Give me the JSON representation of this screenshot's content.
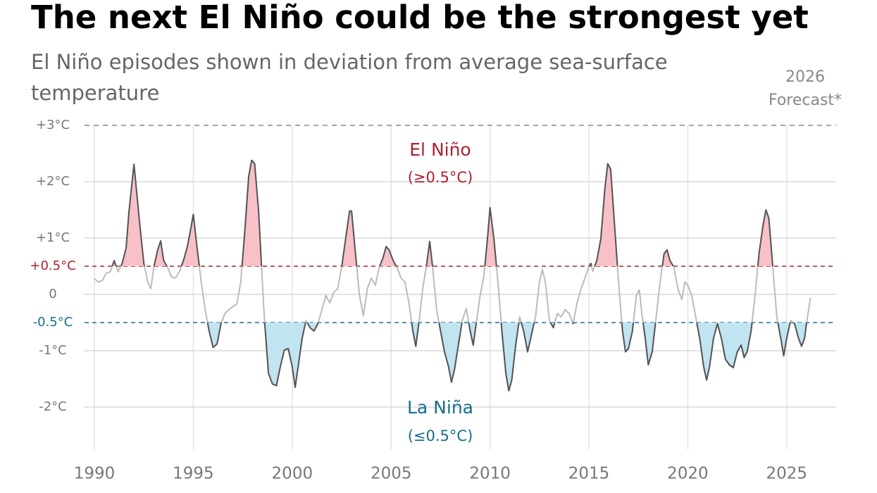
{
  "chart_data": {
    "type": "line",
    "title": "The next El Niño could be the strongest yet",
    "subtitle": "El Niño episodes shown in deviation from average sea-surface temperature",
    "annotations": {
      "el_nino": "El Niño",
      "el_nino_rule": "(≥0.5°C)",
      "la_nina": "La Niña",
      "la_nina_rule": "(≤0.5°C)",
      "forecast_year": "2026",
      "forecast": "Forecast*"
    },
    "el_nino_threshold": 0.5,
    "la_nina_threshold": -0.5,
    "el_nino_color": "#b0202e",
    "la_nina_color": "#176f8c",
    "el_nino_fill": "#f7c1c7",
    "la_nina_fill": "#c0e4f0",
    "line_color": "#bbbbbb",
    "episode_line_color": "#555555",
    "xlim": [
      1989.5,
      2027.5
    ],
    "xticks": [
      1990,
      1995,
      2000,
      2005,
      2010,
      2015,
      2020,
      2025
    ],
    "ylim": [
      -2.75,
      3
    ],
    "yticks": [
      {
        "value": 3,
        "label": "+3°C"
      },
      {
        "value": 2,
        "label": "+2°C"
      },
      {
        "value": 1,
        "label": "+1°C"
      },
      {
        "value": 0.5,
        "label": "+0.5°C"
      },
      0,
      {
        "value": -0.5,
        "label": "-0.5°C"
      },
      {
        "value": -1,
        "label": "-1°C"
      },
      {
        "value": -2,
        "label": "-2°C"
      }
    ],
    "grid": true,
    "x": [
      1990.0,
      1990.2,
      1990.4,
      1990.6,
      1990.8,
      1991.0,
      1991.2,
      1991.4,
      1991.6,
      1991.75,
      1992.0,
      1992.3,
      1992.5,
      1992.7,
      1992.85,
      1993.0,
      1993.2,
      1993.35,
      1993.5,
      1993.7,
      1993.9,
      1994.1,
      1994.3,
      1994.5,
      1994.7,
      1994.9,
      1995.0,
      1995.2,
      1995.4,
      1995.6,
      1995.8,
      1996.0,
      1996.2,
      1996.4,
      1996.6,
      1996.8,
      1997.0,
      1997.2,
      1997.4,
      1997.6,
      1997.8,
      1997.95,
      1998.1,
      1998.3,
      1998.45,
      1998.6,
      1998.8,
      1999.0,
      1999.2,
      1999.4,
      1999.6,
      1999.8,
      2000.0,
      2000.15,
      2000.3,
      2000.5,
      2000.7,
      2000.9,
      2001.1,
      2001.3,
      2001.5,
      2001.7,
      2001.9,
      2002.1,
      2002.3,
      2002.5,
      2002.7,
      2002.9,
      2003.0,
      2003.2,
      2003.4,
      2003.6,
      2003.8,
      2004.0,
      2004.2,
      2004.4,
      2004.6,
      2004.75,
      2004.9,
      2005.1,
      2005.3,
      2005.5,
      2005.7,
      2005.9,
      2006.1,
      2006.25,
      2006.4,
      2006.6,
      2006.8,
      2006.95,
      2007.1,
      2007.3,
      2007.5,
      2007.7,
      2007.9,
      2008.05,
      2008.2,
      2008.4,
      2008.6,
      2008.8,
      2009.0,
      2009.15,
      2009.3,
      2009.5,
      2009.7,
      2009.9,
      2010.0,
      2010.2,
      2010.4,
      2010.6,
      2010.8,
      2010.95,
      2011.1,
      2011.3,
      2011.5,
      2011.7,
      2011.9,
      2012.1,
      2012.3,
      2012.5,
      2012.65,
      2012.8,
      2013.0,
      2013.2,
      2013.4,
      2013.6,
      2013.8,
      2014.0,
      2014.2,
      2014.4,
      2014.6,
      2014.8,
      2015.0,
      2015.1,
      2015.2,
      2015.4,
      2015.6,
      2015.8,
      2015.95,
      2016.1,
      2016.3,
      2016.5,
      2016.7,
      2016.85,
      2017.0,
      2017.2,
      2017.4,
      2017.55,
      2017.7,
      2017.85,
      2018.0,
      2018.2,
      2018.4,
      2018.6,
      2018.8,
      2018.95,
      2019.1,
      2019.3,
      2019.5,
      2019.7,
      2019.85,
      2020.0,
      2020.2,
      2020.4,
      2020.6,
      2020.8,
      2020.95,
      2021.1,
      2021.3,
      2021.5,
      2021.7,
      2021.9,
      2022.1,
      2022.3,
      2022.5,
      2022.7,
      2022.85,
      2023.0,
      2023.2,
      2023.4,
      2023.6,
      2023.8,
      2023.95,
      2024.1,
      2024.3,
      2024.5,
      2024.7,
      2024.85,
      2025.0,
      2025.2,
      2025.4,
      2025.6,
      2025.75,
      2025.9,
      2026.0,
      2026.2
    ],
    "values": [
      0.28,
      0.22,
      0.25,
      0.38,
      0.4,
      0.6,
      0.4,
      0.55,
      0.82,
      1.48,
      2.31,
      1.22,
      0.55,
      0.22,
      0.1,
      0.48,
      0.79,
      0.95,
      0.6,
      0.48,
      0.31,
      0.29,
      0.41,
      0.6,
      0.85,
      1.22,
      1.42,
      0.79,
      0.22,
      -0.28,
      -0.65,
      -0.94,
      -0.88,
      -0.52,
      -0.34,
      -0.27,
      -0.22,
      -0.17,
      0.22,
      1.1,
      2.1,
      2.38,
      2.32,
      1.48,
      0.48,
      -0.46,
      -1.4,
      -1.59,
      -1.62,
      -1.28,
      -0.99,
      -0.96,
      -1.28,
      -1.65,
      -1.28,
      -0.78,
      -0.46,
      -0.59,
      -0.65,
      -0.52,
      -0.28,
      -0.02,
      -0.15,
      0.04,
      0.1,
      0.48,
      0.98,
      1.48,
      1.48,
      0.72,
      -0.02,
      -0.38,
      0.1,
      0.29,
      0.16,
      0.48,
      0.66,
      0.85,
      0.79,
      0.6,
      0.48,
      0.29,
      0.22,
      -0.15,
      -0.65,
      -0.92,
      -0.52,
      0.1,
      0.54,
      0.94,
      0.48,
      -0.27,
      -0.65,
      -1.02,
      -1.28,
      -1.56,
      -1.34,
      -0.9,
      -0.46,
      -0.25,
      -0.65,
      -0.9,
      -0.52,
      -0.02,
      0.35,
      1.1,
      1.54,
      0.98,
      0.22,
      -0.65,
      -1.4,
      -1.71,
      -1.52,
      -0.9,
      -0.4,
      -0.65,
      -1.02,
      -0.71,
      -0.4,
      0.22,
      0.44,
      0.22,
      -0.46,
      -0.59,
      -0.34,
      -0.4,
      -0.27,
      -0.34,
      -0.52,
      -0.15,
      0.1,
      0.29,
      0.5,
      0.55,
      0.41,
      0.6,
      0.98,
      1.85,
      2.32,
      2.22,
      1.22,
      0.22,
      -0.65,
      -1.02,
      -0.96,
      -0.65,
      -0.02,
      0.08,
      -0.4,
      -0.78,
      -1.25,
      -1.02,
      -0.4,
      0.22,
      0.72,
      0.79,
      0.6,
      0.48,
      0.1,
      -0.09,
      0.22,
      0.16,
      -0.02,
      -0.4,
      -0.78,
      -1.28,
      -1.52,
      -1.28,
      -0.78,
      -0.52,
      -0.78,
      -1.15,
      -1.25,
      -1.3,
      -1.02,
      -0.9,
      -1.12,
      -1.02,
      -0.65,
      -0.02,
      0.72,
      1.22,
      1.5,
      1.35,
      0.48,
      -0.4,
      -0.78,
      -1.09,
      -0.78,
      -0.46,
      -0.52,
      -0.78,
      -0.92,
      -0.78,
      -0.52,
      -0.06
    ]
  }
}
